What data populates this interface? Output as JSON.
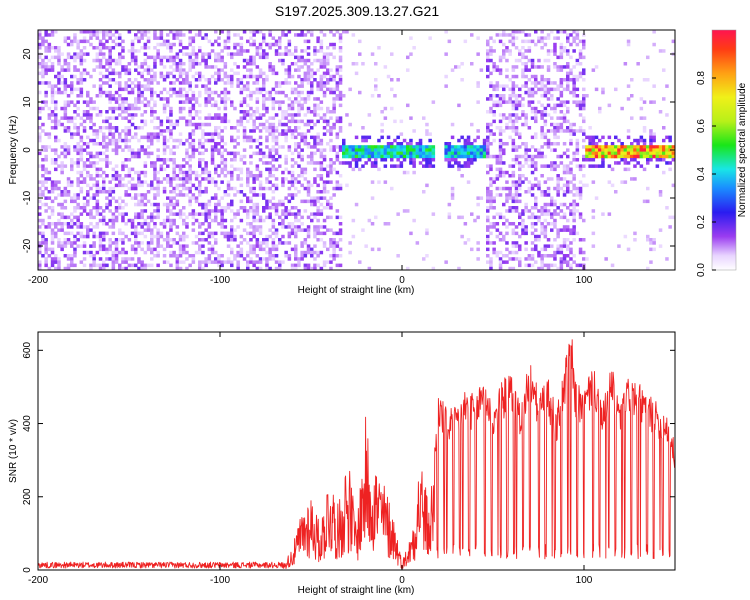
{
  "title": "S197.2025.309.13.27.G21",
  "colors": {
    "snr_line": "#ee2222",
    "background": "#ffffff",
    "axis": "#000000"
  },
  "chart_data": [
    {
      "type": "heatmap",
      "xlabel": "Height of straight line (km)",
      "ylabel": "Frequency (Hz)",
      "xlim": [
        -200,
        150
      ],
      "ylim": [
        -25,
        25
      ],
      "x_ticks": [
        -200,
        -100,
        0,
        100
      ],
      "y_ticks": [
        -20,
        -10,
        0,
        10,
        20
      ],
      "colorbar": {
        "label": "Normalized spectral amplitude",
        "range": [
          0.0,
          1.0
        ],
        "ticks": [
          "0.0",
          "0.2",
          "0.4",
          "0.6",
          "0.8"
        ],
        "colormap": "rainbow"
      },
      "description_regions": [
        {
          "x_range": [
            -200,
            -33
          ],
          "pattern": "broadband noise",
          "amplitude": 0.15
        },
        {
          "x_range": [
            -33,
            18
          ],
          "pattern": "signal near 0 Hz",
          "amplitude": 0.5
        },
        {
          "x_range": [
            22,
            45
          ],
          "pattern": "signal near 0 Hz",
          "amplitude": 0.45
        },
        {
          "x_range": [
            45,
            100
          ],
          "pattern": "broadband noise",
          "amplitude": 0.15
        },
        {
          "x_range": [
            100,
            150
          ],
          "pattern": "strong signal near 0 Hz",
          "amplitude": 0.9
        }
      ]
    },
    {
      "type": "line",
      "xlabel": "Height of straight line (km)",
      "ylabel": "SNR (10 * v/v)",
      "xlim": [
        -200,
        150
      ],
      "ylim": [
        0,
        650
      ],
      "x_ticks": [
        -200,
        -100,
        0,
        100
      ],
      "y_ticks": [
        0,
        200,
        400,
        600
      ],
      "series": [
        {
          "x": [
            -200,
            -150,
            -100,
            -75,
            -65,
            -60,
            -55,
            -50,
            -45,
            -40,
            -35,
            -30,
            -25,
            -20,
            -15,
            -10,
            -5,
            0,
            5,
            10,
            15,
            18,
            20,
            25,
            30,
            35,
            40,
            45,
            50,
            55,
            60,
            65,
            70,
            75,
            80,
            85,
            90,
            93,
            95,
            100,
            105,
            110,
            115,
            120,
            125,
            130,
            135,
            140,
            145,
            150
          ],
          "values": [
            15,
            15,
            15,
            15,
            15,
            60,
            150,
            200,
            110,
            250,
            160,
            300,
            120,
            380,
            280,
            220,
            150,
            20,
            90,
            300,
            150,
            330,
            470,
            420,
            440,
            480,
            460,
            520,
            430,
            500,
            520,
            440,
            560,
            470,
            510,
            420,
            560,
            640,
            500,
            470,
            560,
            430,
            540,
            440,
            520,
            490,
            470,
            440,
            430,
            330
          ]
        }
      ]
    }
  ]
}
